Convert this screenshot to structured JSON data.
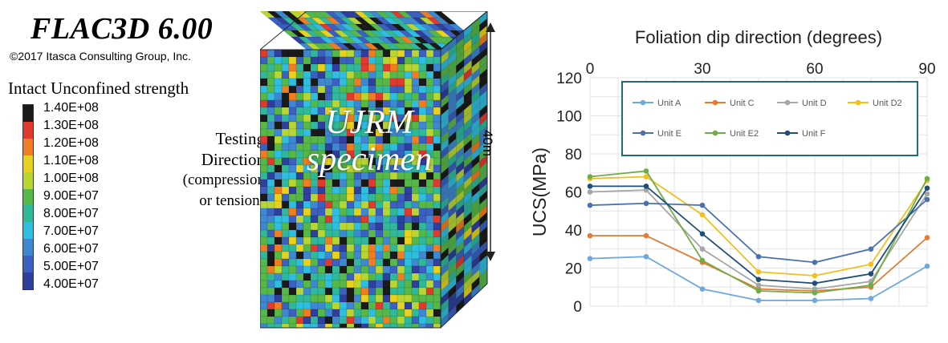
{
  "software": {
    "title": "FLAC3D 6.00",
    "copyright": "©2017 Itasca Consulting Group, Inc."
  },
  "color_legend": {
    "title": "Intact Unconfined strength",
    "entries": [
      {
        "label": "1.40E+08",
        "color": "#1a1a1a"
      },
      {
        "label": "1.30E+08",
        "color": "#e03a2f"
      },
      {
        "label": "1.20E+08",
        "color": "#f07d22"
      },
      {
        "label": "1.10E+08",
        "color": "#e8d21d"
      },
      {
        "label": "1.00E+08",
        "color": "#b8d633"
      },
      {
        "label": "9.00E+07",
        "color": "#56b848"
      },
      {
        "label": "8.00E+07",
        "color": "#2fb89a"
      },
      {
        "label": "7.00E+07",
        "color": "#2fbde0"
      },
      {
        "label": "6.00E+07",
        "color": "#3d88d0"
      },
      {
        "label": "5.00E+07",
        "color": "#3a60c0"
      },
      {
        "label": "4.00E+07",
        "color": "#2e3f9e"
      }
    ]
  },
  "testing": {
    "line1": "Testing",
    "line2": "Direction",
    "line3": "(compression",
    "line4": "or tension)"
  },
  "specimen": {
    "line1": "UJRM",
    "line2": "specimen",
    "height_label": "40m"
  },
  "chart_data": {
    "type": "line",
    "title": "Foliation dip direction (degrees)",
    "xlabel": "Foliation dip direction (degrees)",
    "ylabel": "UCS(MPa)",
    "x_ticks": [
      0,
      30,
      60,
      90
    ],
    "y_ticks": [
      0,
      20,
      40,
      60,
      80,
      100,
      120
    ],
    "xlim": [
      0,
      90
    ],
    "ylim": [
      0,
      120
    ],
    "grid": true,
    "legend_position": "top-right",
    "x": [
      0,
      15,
      30,
      45,
      60,
      75,
      90
    ],
    "series": [
      {
        "name": "Unit A",
        "color": "#6fa8dc",
        "values": [
          25,
          26,
          9,
          3,
          3,
          4,
          21
        ]
      },
      {
        "name": "Unit C",
        "color": "#e47c35",
        "values": [
          37,
          37,
          23,
          9,
          8,
          10,
          36
        ]
      },
      {
        "name": "Unit D",
        "color": "#a6a6a6",
        "values": [
          60,
          61,
          30,
          11,
          9,
          13,
          59
        ]
      },
      {
        "name": "Unit D2",
        "color": "#f3c01b",
        "values": [
          67,
          68,
          48,
          18,
          16,
          22,
          66
        ]
      },
      {
        "name": "Unit E",
        "color": "#4a72b0",
        "values": [
          53,
          54,
          53,
          26,
          23,
          30,
          56
        ]
      },
      {
        "name": "Unit E2",
        "color": "#70ad47",
        "values": [
          68,
          71,
          24,
          8,
          7,
          11,
          67
        ]
      },
      {
        "name": "Unit F",
        "color": "#1f4e79",
        "values": [
          63,
          63,
          38,
          14,
          12,
          17,
          62
        ]
      }
    ]
  }
}
